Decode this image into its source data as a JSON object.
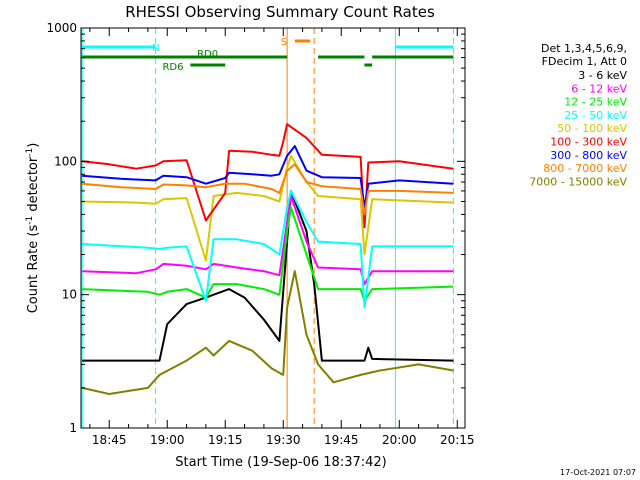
{
  "chart_data": {
    "type": "line",
    "title": "RHESSI Observing Summary Count Rates",
    "xlabel": "Start Time (19-Sep-06 18:37:42)",
    "ylabel": "Count Rate (s",
    "ylabel_sup1": "-1",
    "ylabel_mid": " detector",
    "ylabel_sup2": "-1",
    "ylabel_end": ")",
    "y_scale": "log",
    "ylim": [
      1,
      1000
    ],
    "y_ticks": [
      {
        "v": 1,
        "label": "1"
      },
      {
        "v": 10,
        "label": "10"
      },
      {
        "v": 100,
        "label": "100"
      },
      {
        "v": 1000,
        "label": "1000"
      }
    ],
    "xlim": [
      "18:37:42",
      "20:17"
    ],
    "x_ticks": [
      "18:45",
      "19:00",
      "19:15",
      "19:30",
      "19:45",
      "20:00",
      "20:15"
    ],
    "legend_header": [
      "Det 1,3,4,5,6,9,",
      "FDecim 1, Att 0"
    ],
    "legend_position": "right",
    "series": [
      {
        "name": "3 - 6 keV",
        "color": "#000000",
        "points": [
          [
            "18:38",
            3.2
          ],
          [
            "18:58",
            3.2
          ],
          [
            "19:00",
            6
          ],
          [
            "19:05",
            8.5
          ],
          [
            "19:10",
            9.5
          ],
          [
            "19:12",
            10
          ],
          [
            "19:16",
            11
          ],
          [
            "19:20",
            9.5
          ],
          [
            "19:25",
            6.5
          ],
          [
            "19:29",
            4.5
          ],
          [
            "19:31",
            25
          ],
          [
            "19:32",
            60
          ],
          [
            "19:36",
            30
          ],
          [
            "19:38",
            12
          ],
          [
            "19:40",
            3.2
          ],
          [
            "19:51",
            3.2
          ],
          [
            "19:52",
            4
          ],
          [
            "19:53",
            3.3
          ],
          [
            "20:14",
            3.2
          ]
        ]
      },
      {
        "name": "6 - 12 keV",
        "color": "#ff00ff",
        "points": [
          [
            "18:38",
            15
          ],
          [
            "18:52",
            14.5
          ],
          [
            "18:57",
            15.5
          ],
          [
            "18:59",
            17
          ],
          [
            "19:05",
            16.5
          ],
          [
            "19:10",
            15.5
          ],
          [
            "19:12",
            17
          ],
          [
            "19:18",
            16
          ],
          [
            "19:25",
            15
          ],
          [
            "19:29",
            14
          ],
          [
            "19:31",
            35
          ],
          [
            "19:32",
            55
          ],
          [
            "19:36",
            25
          ],
          [
            "19:39",
            16
          ],
          [
            "19:50",
            15.5
          ],
          [
            "19:51",
            12
          ],
          [
            "19:53",
            15
          ],
          [
            "20:14",
            15
          ]
        ]
      },
      {
        "name": "12 - 25 keV",
        "color": "#00ee00",
        "points": [
          [
            "18:38",
            11
          ],
          [
            "18:55",
            10.5
          ],
          [
            "18:58",
            10
          ],
          [
            "19:00",
            10.5
          ],
          [
            "19:05",
            11
          ],
          [
            "19:10",
            9.5
          ],
          [
            "19:12",
            12
          ],
          [
            "19:18",
            12
          ],
          [
            "19:25",
            11
          ],
          [
            "19:29",
            10
          ],
          [
            "19:31",
            30
          ],
          [
            "19:32",
            45
          ],
          [
            "19:36",
            20
          ],
          [
            "19:39",
            11
          ],
          [
            "19:50",
            11
          ],
          [
            "19:51",
            9
          ],
          [
            "19:53",
            11
          ],
          [
            "20:14",
            11.5
          ]
        ]
      },
      {
        "name": "25 - 50 keV",
        "color": "#00ffff",
        "points": [
          [
            "18:38",
            24
          ],
          [
            "18:55",
            22.5
          ],
          [
            "18:58",
            22
          ],
          [
            "19:00",
            22.5
          ],
          [
            "19:05",
            23
          ],
          [
            "19:10",
            9
          ],
          [
            "19:12",
            26
          ],
          [
            "19:18",
            26
          ],
          [
            "19:25",
            24
          ],
          [
            "19:29",
            20
          ],
          [
            "19:31",
            45
          ],
          [
            "19:32",
            60
          ],
          [
            "19:36",
            35
          ],
          [
            "19:39",
            25
          ],
          [
            "19:50",
            24
          ],
          [
            "19:51",
            8
          ],
          [
            "19:53",
            23
          ],
          [
            "20:14",
            23
          ]
        ]
      },
      {
        "name": "50 - 100 keV",
        "color": "#d8c800",
        "points": [
          [
            "18:38",
            50
          ],
          [
            "18:52",
            49
          ],
          [
            "18:57",
            48
          ],
          [
            "18:59",
            52
          ],
          [
            "19:05",
            53
          ],
          [
            "19:10",
            18
          ],
          [
            "19:12",
            55
          ],
          [
            "19:18",
            58
          ],
          [
            "19:25",
            55
          ],
          [
            "19:29",
            50
          ],
          [
            "19:31",
            90
          ],
          [
            "19:32",
            110
          ],
          [
            "19:36",
            70
          ],
          [
            "19:39",
            55
          ],
          [
            "19:50",
            52
          ],
          [
            "19:51",
            20
          ],
          [
            "19:53",
            52
          ],
          [
            "20:14",
            49
          ]
        ]
      },
      {
        "name": "100 - 300 keV",
        "color": "#ff0000",
        "points": [
          [
            "18:38",
            100
          ],
          [
            "18:45",
            95
          ],
          [
            "18:52",
            88
          ],
          [
            "18:57",
            93
          ],
          [
            "18:59",
            100
          ],
          [
            "19:05",
            102
          ],
          [
            "19:10",
            36
          ],
          [
            "19:15",
            58
          ],
          [
            "19:16",
            120
          ],
          [
            "19:22",
            118
          ],
          [
            "19:27",
            112
          ],
          [
            "19:29",
            110
          ],
          [
            "19:30",
            140
          ],
          [
            "19:31",
            190
          ],
          [
            "19:36",
            150
          ],
          [
            "19:40",
            112
          ],
          [
            "19:50",
            108
          ],
          [
            "19:51",
            32
          ],
          [
            "19:52",
            98
          ],
          [
            "20:00",
            100
          ],
          [
            "20:14",
            88
          ]
        ]
      },
      {
        "name": "300 - 800 keV",
        "color": "#0000ff",
        "points": [
          [
            "18:38",
            78
          ],
          [
            "18:48",
            74
          ],
          [
            "18:57",
            72
          ],
          [
            "18:59",
            78
          ],
          [
            "19:05",
            76
          ],
          [
            "19:10",
            68
          ],
          [
            "19:15",
            75
          ],
          [
            "19:16",
            82
          ],
          [
            "19:22",
            80
          ],
          [
            "19:27",
            78
          ],
          [
            "19:29",
            80
          ],
          [
            "19:31",
            110
          ],
          [
            "19:33",
            130
          ],
          [
            "19:36",
            85
          ],
          [
            "19:40",
            76
          ],
          [
            "19:50",
            75
          ],
          [
            "19:51",
            45
          ],
          [
            "19:52",
            68
          ],
          [
            "20:00",
            72
          ],
          [
            "20:14",
            68
          ]
        ]
      },
      {
        "name": "800 - 7000 keV",
        "color": "#ff8000",
        "points": [
          [
            "18:38",
            68
          ],
          [
            "18:48",
            64
          ],
          [
            "18:57",
            62
          ],
          [
            "18:59",
            67
          ],
          [
            "19:05",
            66
          ],
          [
            "19:10",
            64
          ],
          [
            "19:15",
            68
          ],
          [
            "19:20",
            68
          ],
          [
            "19:27",
            62
          ],
          [
            "19:29",
            58
          ],
          [
            "19:31",
            85
          ],
          [
            "19:33",
            95
          ],
          [
            "19:36",
            70
          ],
          [
            "19:40",
            65
          ],
          [
            "19:50",
            62
          ],
          [
            "19:51",
            40
          ],
          [
            "19:52",
            60
          ],
          [
            "20:00",
            60
          ],
          [
            "20:14",
            58
          ]
        ]
      },
      {
        "name": "7000 - 15000 keV",
        "color": "#808000",
        "points": [
          [
            "18:38",
            2
          ],
          [
            "18:45",
            1.8
          ],
          [
            "18:55",
            2
          ],
          [
            "18:58",
            2.5
          ],
          [
            "19:05",
            3.2
          ],
          [
            "19:10",
            4
          ],
          [
            "19:12",
            3.5
          ],
          [
            "19:16",
            4.5
          ],
          [
            "19:22",
            3.8
          ],
          [
            "19:27",
            2.8
          ],
          [
            "19:30",
            2.5
          ],
          [
            "19:31",
            8
          ],
          [
            "19:33",
            15
          ],
          [
            "19:36",
            5
          ],
          [
            "19:39",
            3
          ],
          [
            "19:43",
            2.2
          ],
          [
            "19:50",
            2.5
          ],
          [
            "19:55",
            2.7
          ],
          [
            "20:05",
            3
          ],
          [
            "20:14",
            2.7
          ]
        ]
      }
    ],
    "segments": [
      {
        "label": "N",
        "color": "#00ffff",
        "row": 1,
        "ranges": [
          [
            "18:38",
            "18:57"
          ],
          [
            "19:59",
            "20:14"
          ]
        ]
      },
      {
        "label": "S",
        "color": "#ff8000",
        "row": 0,
        "ranges": [
          [
            "19:33",
            "19:37"
          ]
        ]
      },
      {
        "label": "RD0",
        "color": "#008000",
        "row": 2,
        "ranges": [
          [
            "18:38",
            "19:31"
          ],
          [
            "19:39",
            "19:51"
          ],
          [
            "19:53",
            "20:14"
          ]
        ]
      },
      {
        "label": "RD6",
        "color": "#008000",
        "row": 3,
        "ranges": [
          [
            "19:06",
            "19:15"
          ],
          [
            "19:51",
            "19:53"
          ]
        ]
      }
    ],
    "vlines": [
      {
        "t": "18:38",
        "color": "#00ffff",
        "style": "solid"
      },
      {
        "t": "18:57",
        "color": "#00ffff",
        "style": "dashed"
      },
      {
        "t": "19:31",
        "color": "#ff8000",
        "style": "solid"
      },
      {
        "t": "19:38",
        "color": "#ff8000",
        "style": "dashed"
      },
      {
        "t": "19:59",
        "color": "#00ffff",
        "style": "solid"
      },
      {
        "t": "20:14",
        "color": "#00ffff",
        "style": "dashed"
      }
    ],
    "grid": false
  },
  "footer": {
    "timestamp": "17-Oct-2021 07:07"
  }
}
